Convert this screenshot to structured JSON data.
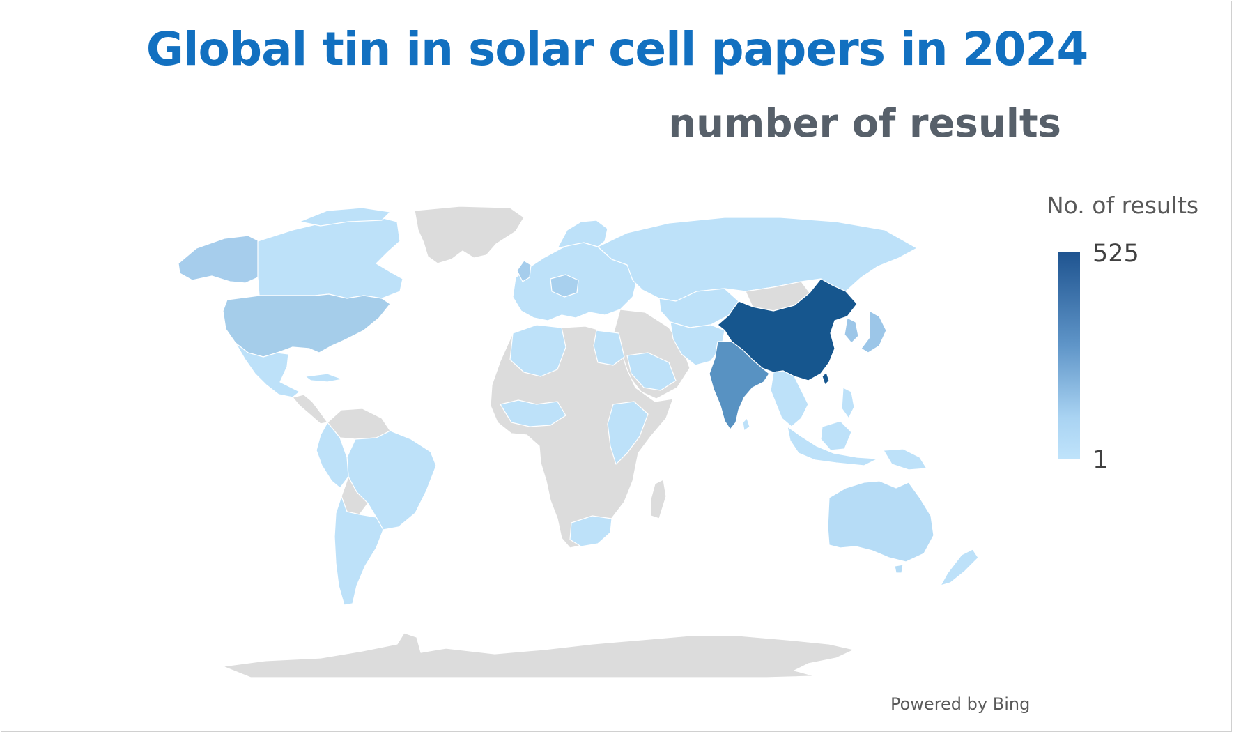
{
  "title": "Global tin in solar cell papers in 2024",
  "subtitle": "number of results",
  "legend": {
    "title": "No. of results",
    "max_label": "525",
    "min_label": "1",
    "color_max": "#1f5490",
    "color_min": "#bfe3fb"
  },
  "credit": "Powered by Bing",
  "colors": {
    "no_data": "#dcdcdc",
    "title": "#1270c0",
    "subtitle": "#57606a",
    "border": "#ffffff"
  },
  "chart_data": {
    "type": "choropleth",
    "value_range": [
      1,
      525
    ],
    "regions": [
      {
        "name": "China",
        "value": 525
      },
      {
        "name": "India",
        "value": 240
      },
      {
        "name": "United States",
        "value": 80
      },
      {
        "name": "Japan",
        "value": 60
      },
      {
        "name": "South Korea",
        "value": 60
      },
      {
        "name": "Australia",
        "value": 30
      },
      {
        "name": "Canada",
        "value": 20
      },
      {
        "name": "Brazil",
        "value": 15
      },
      {
        "name": "Russia",
        "value": 15
      },
      {
        "name": "Mexico",
        "value": 5
      },
      {
        "name": "Algeria",
        "value": 5
      },
      {
        "name": "Egypt",
        "value": 10
      },
      {
        "name": "Saudi Arabia",
        "value": 10
      },
      {
        "name": "South Africa",
        "value": 10
      },
      {
        "name": "New Zealand",
        "value": 5
      }
    ]
  }
}
